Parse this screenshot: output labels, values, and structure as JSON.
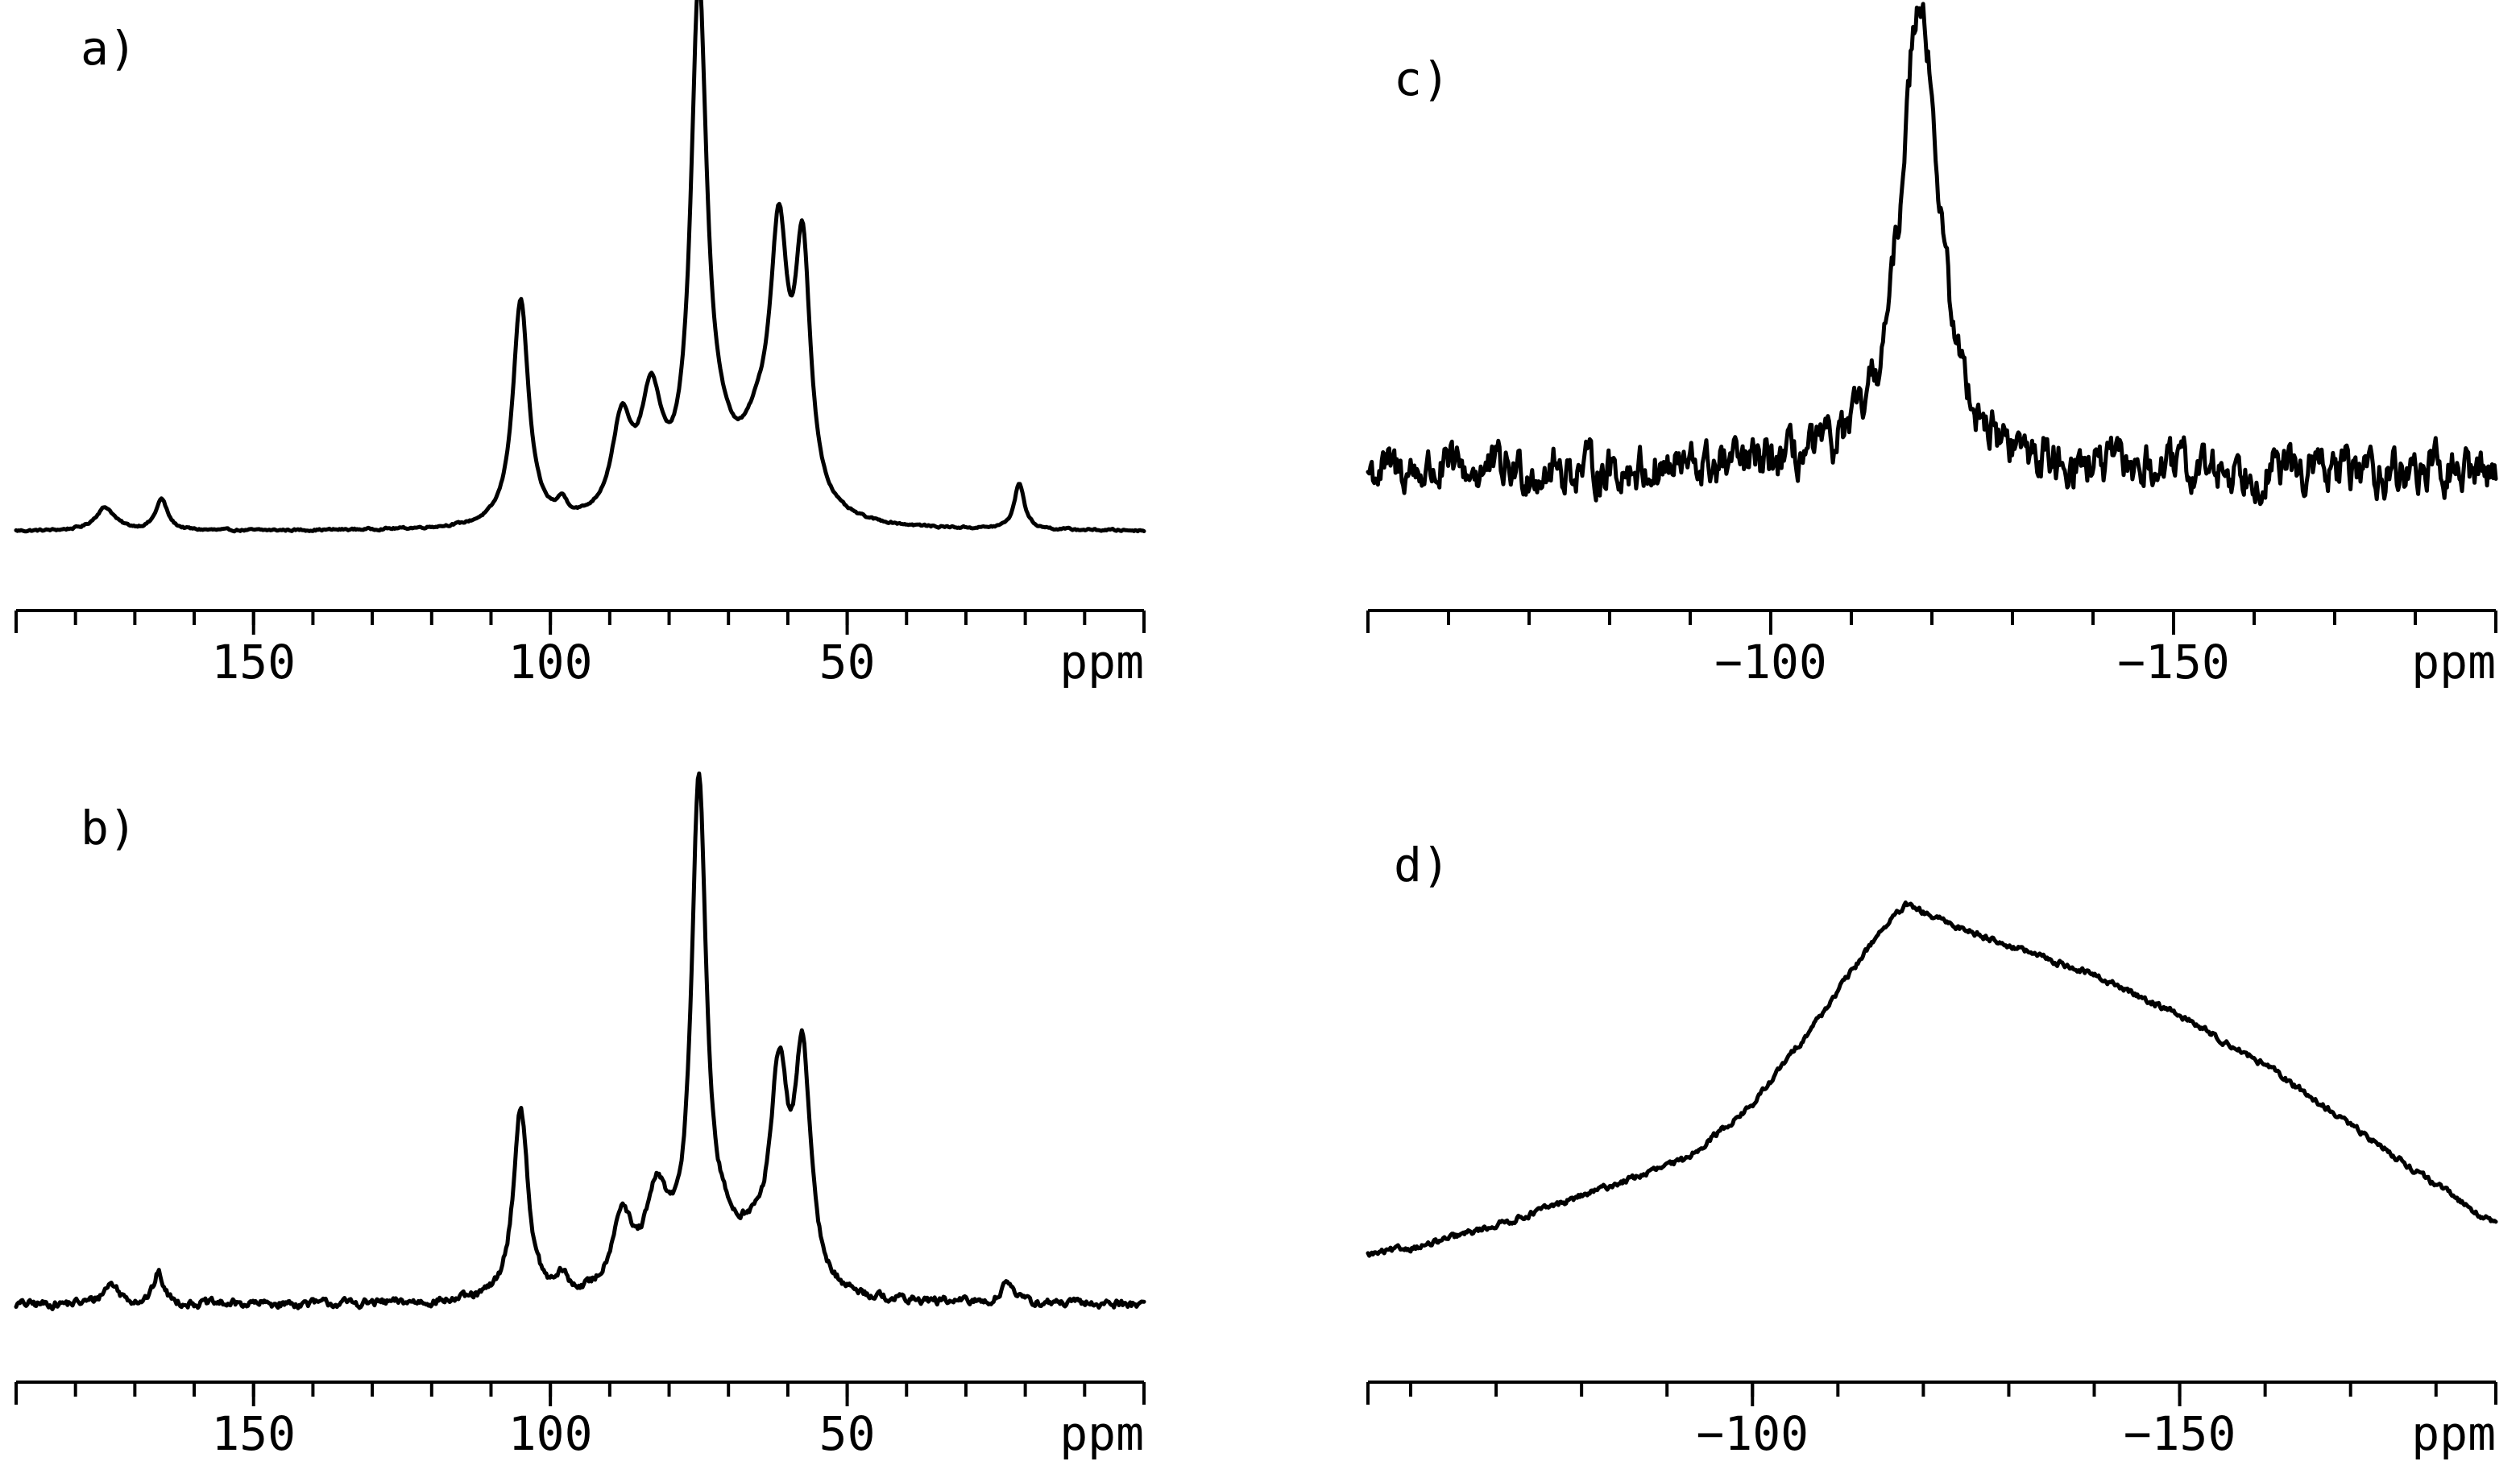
{
  "chart_data": [
    {
      "type": "line",
      "panel_label": "a)",
      "xlabel": "ppm",
      "x_reversed": true,
      "xlim": [
        190,
        0
      ],
      "ylim": [
        0,
        1
      ],
      "tick_labels": [
        "150",
        "100",
        "50"
      ],
      "tick_values": [
        150,
        100,
        50
      ],
      "minor_tick_step": 10,
      "noise": 0.002,
      "baseline": 0.0,
      "baseline_drift": [],
      "peaks": [
        {
          "center": 175,
          "height": 0.045,
          "width": 2.0
        },
        {
          "center": 165.5,
          "height": 0.06,
          "width": 1.2
        },
        {
          "center": 105,
          "height": 0.44,
          "width": 1.6
        },
        {
          "center": 98,
          "height": 0.03,
          "width": 1.0
        },
        {
          "center": 88,
          "height": 0.18,
          "width": 2.0
        },
        {
          "center": 83,
          "height": 0.22,
          "width": 2.2
        },
        {
          "center": 75,
          "height": 0.97,
          "width": 1.6
        },
        {
          "center": 72,
          "height": 0.1,
          "width": 4.0
        },
        {
          "center": 65,
          "height": 0.12,
          "width": 3.5
        },
        {
          "center": 61.5,
          "height": 0.48,
          "width": 1.8
        },
        {
          "center": 57.5,
          "height": 0.48,
          "width": 1.6
        },
        {
          "center": 21,
          "height": 0.09,
          "width": 1.0
        }
      ]
    },
    {
      "type": "line",
      "panel_label": "b)",
      "xlabel": "ppm",
      "x_reversed": true,
      "xlim": [
        190,
        0
      ],
      "ylim": [
        0,
        1
      ],
      "tick_labels": [
        "150",
        "100",
        "50"
      ],
      "tick_values": [
        150,
        100,
        50
      ],
      "minor_tick_step": 10,
      "noise": 0.008,
      "baseline": 0.0,
      "baseline_drift": [],
      "peaks": [
        {
          "center": 174,
          "height": 0.04,
          "width": 1.6
        },
        {
          "center": 166,
          "height": 0.06,
          "width": 1.0
        },
        {
          "center": 105,
          "height": 0.38,
          "width": 1.5
        },
        {
          "center": 98,
          "height": 0.035,
          "width": 1.0
        },
        {
          "center": 88,
          "height": 0.15,
          "width": 2.0
        },
        {
          "center": 82,
          "height": 0.18,
          "width": 2.4
        },
        {
          "center": 75,
          "height": 0.97,
          "width": 1.5
        },
        {
          "center": 71,
          "height": 0.08,
          "width": 4.0
        },
        {
          "center": 66,
          "height": 0.06,
          "width": 3.0
        },
        {
          "center": 61.5,
          "height": 0.4,
          "width": 1.8
        },
        {
          "center": 57.5,
          "height": 0.45,
          "width": 1.6
        },
        {
          "center": 23,
          "height": 0.05,
          "width": 1.0
        }
      ]
    },
    {
      "type": "line",
      "panel_label": "c)",
      "xlabel": "ppm",
      "x_reversed": true,
      "xlim": [
        -50,
        -190
      ],
      "ylim": [
        0,
        1
      ],
      "tick_labels": [
        "−100",
        "−150"
      ],
      "tick_values": [
        -100,
        -150
      ],
      "minor_tick_step": 10,
      "noise": 0.045,
      "baseline": 0.12,
      "baseline_drift": [],
      "peaks": [
        {
          "center": -118.5,
          "height": 0.96,
          "width": 2.8
        }
      ]
    },
    {
      "type": "line",
      "panel_label": "d)",
      "xlabel": "ppm",
      "x_reversed": true,
      "xlim": [
        -55,
        -187
      ],
      "ylim": [
        0,
        1
      ],
      "tick_labels": [
        "−100",
        "−150"
      ],
      "tick_values": [
        -100,
        -150
      ],
      "minor_tick_step": 10,
      "noise": 0.006,
      "baseline": 0.0,
      "baseline_drift": [],
      "broad": {
        "x": [
          -55,
          -62,
          -72,
          -82,
          -92,
          -100,
          -108,
          -115,
          -118,
          -122,
          -130,
          -140,
          -150,
          -160,
          -170,
          -180,
          -187
        ],
        "y": [
          0.1,
          0.12,
          0.17,
          0.23,
          0.29,
          0.4,
          0.58,
          0.75,
          0.8,
          0.77,
          0.72,
          0.66,
          0.58,
          0.48,
          0.36,
          0.24,
          0.16
        ]
      }
    }
  ]
}
